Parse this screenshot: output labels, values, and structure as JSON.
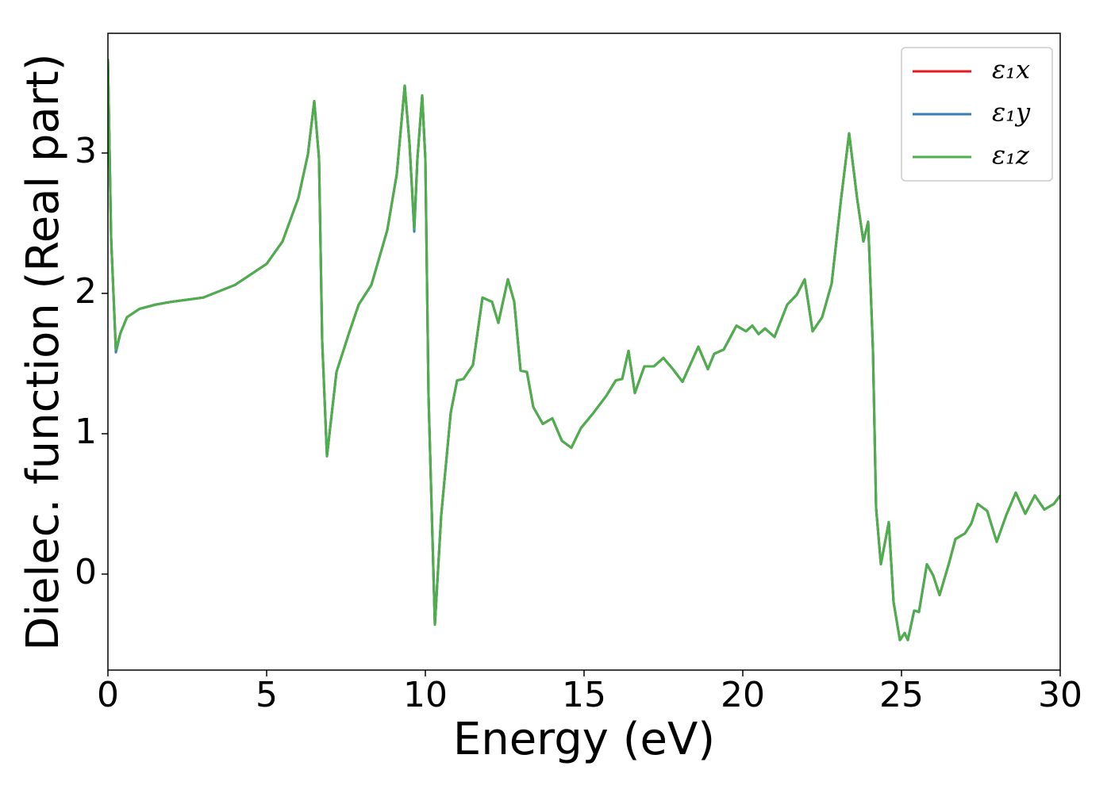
{
  "chart_data": {
    "type": "line",
    "xlabel": "Energy (eV)",
    "ylabel": "Dielec. function (Real part)",
    "xlim": [
      0,
      30
    ],
    "ylim": [
      -0.684,
      3.853
    ],
    "xticks": [
      0,
      5,
      10,
      15,
      20,
      25,
      30
    ],
    "yticks": [
      0,
      1,
      2,
      3
    ],
    "legend": "upper right",
    "grid": false,
    "x": [
      0,
      0.1,
      0.25,
      0.4,
      0.6,
      1.0,
      1.5,
      2,
      3,
      4,
      5,
      5.5,
      6,
      6.3,
      6.5,
      6.65,
      6.75,
      6.9,
      7.0,
      7.2,
      7.6,
      7.9,
      8.3,
      8.8,
      9.1,
      9.35,
      9.5,
      9.65,
      9.75,
      9.9,
      10.0,
      10.1,
      10.3,
      10.5,
      10.8,
      11.0,
      11.2,
      11.5,
      11.8,
      12.1,
      12.3,
      12.6,
      12.8,
      13.0,
      13.2,
      13.4,
      13.7,
      14.0,
      14.3,
      14.6,
      14.9,
      15.3,
      15.7,
      16.0,
      16.2,
      16.4,
      16.6,
      16.9,
      17.2,
      17.5,
      17.8,
      18.1,
      18.6,
      18.9,
      19.1,
      19.4,
      19.8,
      20.1,
      20.3,
      20.5,
      20.7,
      21.0,
      21.4,
      21.7,
      21.95,
      22.2,
      22.5,
      22.8,
      23.1,
      23.35,
      23.6,
      23.8,
      23.95,
      24.1,
      24.2,
      24.35,
      24.6,
      24.75,
      24.95,
      25.1,
      25.2,
      25.4,
      25.55,
      25.8,
      26.0,
      26.2,
      26.5,
      26.7,
      27.0,
      27.2,
      27.4,
      27.7,
      28.0,
      28.3,
      28.6,
      28.9,
      29.2,
      29.5,
      29.8,
      30.0
    ],
    "series": [
      {
        "name": "ε₁x",
        "color": "#e41a1c",
        "values": [
          3.67,
          2.4,
          1.6,
          1.72,
          1.83,
          1.89,
          1.92,
          1.94,
          1.97,
          2.06,
          2.21,
          2.37,
          2.68,
          2.99,
          3.37,
          2.96,
          1.66,
          0.84,
          1.04,
          1.44,
          1.72,
          1.92,
          2.06,
          2.45,
          2.85,
          3.48,
          3.07,
          2.46,
          2.96,
          3.41,
          2.96,
          1.27,
          -0.36,
          0.42,
          1.15,
          1.38,
          1.39,
          1.49,
          1.97,
          1.94,
          1.79,
          2.1,
          1.94,
          1.45,
          1.44,
          1.19,
          1.07,
          1.11,
          0.95,
          0.9,
          1.04,
          1.15,
          1.27,
          1.38,
          1.39,
          1.59,
          1.29,
          1.48,
          1.48,
          1.54,
          1.46,
          1.37,
          1.62,
          1.46,
          1.57,
          1.6,
          1.77,
          1.73,
          1.77,
          1.71,
          1.75,
          1.69,
          1.92,
          1.99,
          2.1,
          1.73,
          1.83,
          2.07,
          2.68,
          3.14,
          2.68,
          2.37,
          2.51,
          1.6,
          0.47,
          0.07,
          0.37,
          -0.2,
          -0.47,
          -0.42,
          -0.47,
          -0.26,
          -0.27,
          0.07,
          -0.01,
          -0.15,
          0.08,
          0.25,
          0.29,
          0.36,
          0.5,
          0.45,
          0.23,
          0.42,
          0.58,
          0.43,
          0.56,
          0.46,
          0.5,
          0.56
        ]
      },
      {
        "name": "ε₁y",
        "color": "#377eb8",
        "values": [
          3.67,
          2.4,
          1.58,
          1.72,
          1.83,
          1.89,
          1.92,
          1.94,
          1.97,
          2.06,
          2.21,
          2.37,
          2.68,
          2.99,
          3.37,
          2.96,
          1.66,
          0.84,
          1.04,
          1.44,
          1.72,
          1.92,
          2.06,
          2.45,
          2.85,
          3.48,
          3.07,
          2.44,
          2.96,
          3.41,
          2.96,
          1.27,
          -0.36,
          0.42,
          1.15,
          1.38,
          1.39,
          1.49,
          1.97,
          1.94,
          1.79,
          2.1,
          1.94,
          1.45,
          1.44,
          1.19,
          1.07,
          1.11,
          0.95,
          0.9,
          1.04,
          1.15,
          1.27,
          1.38,
          1.39,
          1.59,
          1.29,
          1.48,
          1.48,
          1.54,
          1.46,
          1.37,
          1.62,
          1.46,
          1.57,
          1.6,
          1.77,
          1.73,
          1.77,
          1.71,
          1.75,
          1.69,
          1.92,
          1.99,
          2.1,
          1.73,
          1.83,
          2.07,
          2.68,
          3.14,
          2.68,
          2.37,
          2.51,
          1.6,
          0.47,
          0.07,
          0.37,
          -0.2,
          -0.47,
          -0.42,
          -0.47,
          -0.26,
          -0.27,
          0.07,
          -0.01,
          -0.15,
          0.08,
          0.25,
          0.29,
          0.36,
          0.5,
          0.45,
          0.23,
          0.42,
          0.58,
          0.43,
          0.56,
          0.46,
          0.5,
          0.56
        ]
      },
      {
        "name": "ε₁z",
        "color": "#4daf4a",
        "values": [
          3.67,
          2.4,
          1.6,
          1.72,
          1.83,
          1.89,
          1.92,
          1.94,
          1.97,
          2.06,
          2.21,
          2.37,
          2.68,
          2.99,
          3.37,
          2.96,
          1.66,
          0.84,
          1.04,
          1.44,
          1.72,
          1.92,
          2.06,
          2.45,
          2.85,
          3.48,
          3.07,
          2.46,
          2.96,
          3.41,
          2.96,
          1.27,
          -0.36,
          0.42,
          1.15,
          1.38,
          1.39,
          1.49,
          1.97,
          1.94,
          1.79,
          2.1,
          1.94,
          1.45,
          1.44,
          1.19,
          1.07,
          1.11,
          0.95,
          0.9,
          1.04,
          1.15,
          1.27,
          1.38,
          1.39,
          1.59,
          1.29,
          1.48,
          1.48,
          1.54,
          1.46,
          1.37,
          1.62,
          1.46,
          1.57,
          1.6,
          1.77,
          1.73,
          1.77,
          1.71,
          1.75,
          1.69,
          1.92,
          1.99,
          2.1,
          1.73,
          1.83,
          2.07,
          2.68,
          3.14,
          2.68,
          2.37,
          2.51,
          1.6,
          0.47,
          0.07,
          0.37,
          -0.2,
          -0.47,
          -0.42,
          -0.47,
          -0.26,
          -0.27,
          0.07,
          -0.01,
          -0.15,
          0.08,
          0.25,
          0.29,
          0.36,
          0.5,
          0.45,
          0.23,
          0.42,
          0.58,
          0.43,
          0.56,
          0.46,
          0.5,
          0.56
        ]
      }
    ]
  }
}
